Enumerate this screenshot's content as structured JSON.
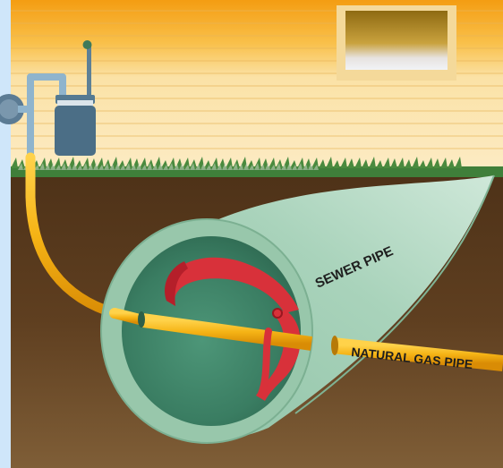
{
  "labels": {
    "sewer_pipe": "SEWER PIPE",
    "gas_pipe": "NATURAL GAS PIPE"
  },
  "colors": {
    "sky_strip": "#cfe6fa",
    "siding_top": "#f6a91b",
    "siding_bottom": "#fbe7b3",
    "soil_top": "#5a3a1e",
    "soil_bottom": "#7c5a33",
    "grass": "#3f7f3a",
    "gas_pipe": "#f5b315",
    "sewer_pipe": "#a3cdb5",
    "meter": "#4b6e86",
    "red_tool": "#d8313a"
  }
}
